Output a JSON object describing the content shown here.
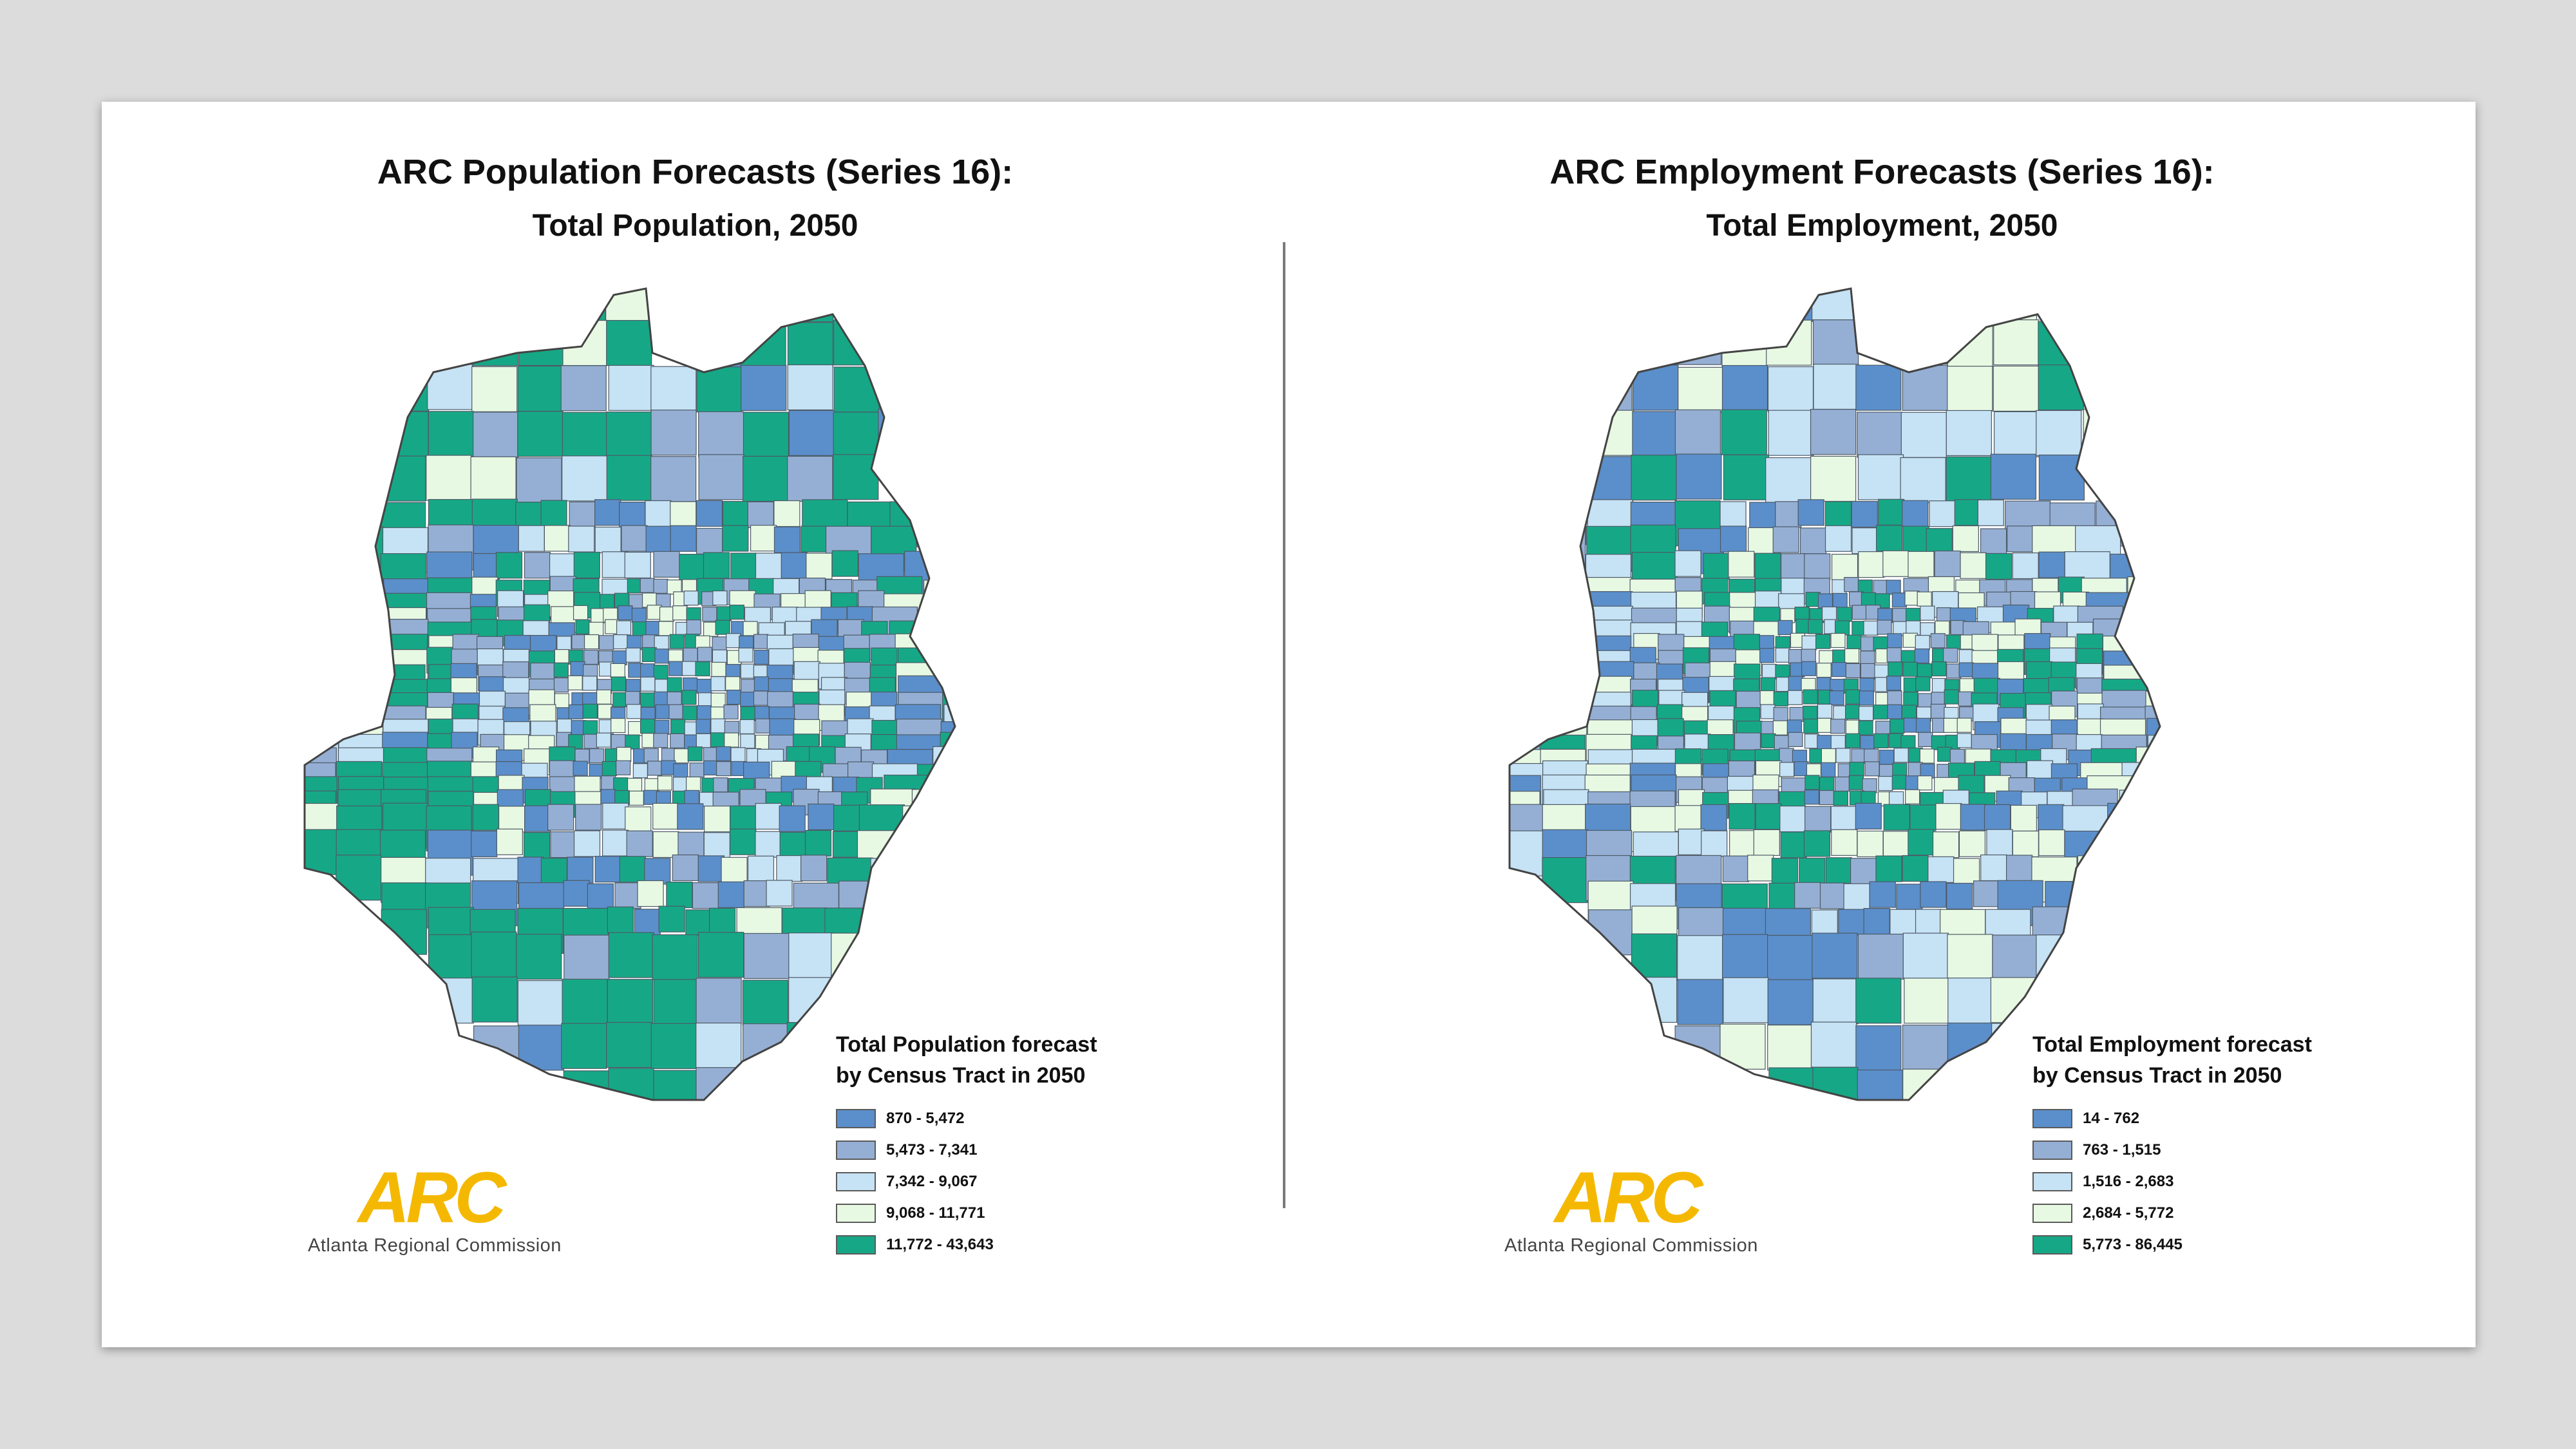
{
  "colors": {
    "class1": "#5b8fcb",
    "class2": "#95afd4",
    "class3": "#c6e2f5",
    "class4": "#e8f9e3",
    "class5": "#16a886",
    "border": "#444444",
    "logo_accent": "#f5b800"
  },
  "left": {
    "title": "ARC Population Forecasts (Series 16):",
    "subtitle": "Total Population, 2050",
    "legend_title_line1": "Total Population forecast",
    "legend_title_line2": "by Census Tract in 2050",
    "legend": [
      {
        "label": "870 - 5,472",
        "color": "#5b8fcb"
      },
      {
        "label": "5,473 - 7,341",
        "color": "#95afd4"
      },
      {
        "label": "7,342 - 9,067",
        "color": "#c6e2f5"
      },
      {
        "label": "9,068 - 11,771",
        "color": "#e8f9e3"
      },
      {
        "label": "11,772 - 43,643",
        "color": "#16a886"
      }
    ],
    "logo_letters": "ARC",
    "logo_text": "Atlanta Regional Commission"
  },
  "right": {
    "title": "ARC Employment Forecasts (Series 16):",
    "subtitle": "Total Employment, 2050",
    "legend_title_line1": "Total Employment forecast",
    "legend_title_line2": "by Census Tract in 2050",
    "legend": [
      {
        "label": "14 - 762",
        "color": "#5b8fcb"
      },
      {
        "label": "763 - 1,515",
        "color": "#95afd4"
      },
      {
        "label": "1,516 - 2,683",
        "color": "#c6e2f5"
      },
      {
        "label": "2,684 - 5,772",
        "color": "#e8f9e3"
      },
      {
        "label": "5,773 - 86,445",
        "color": "#16a886"
      }
    ],
    "logo_letters": "ARC",
    "logo_text": "Atlanta Regional Commission"
  }
}
